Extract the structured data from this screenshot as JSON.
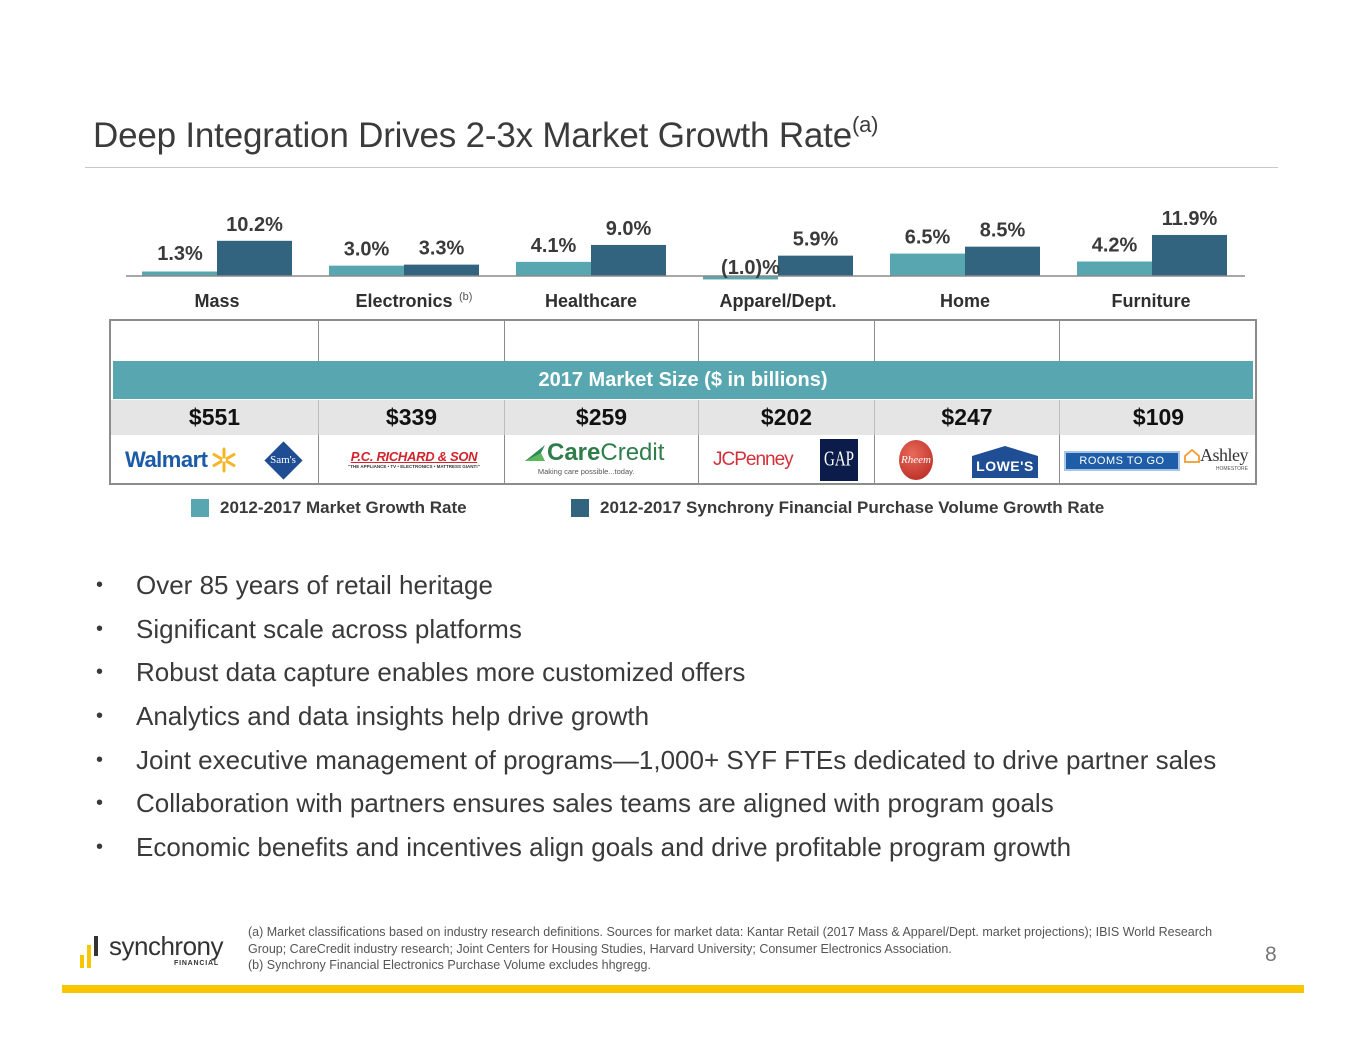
{
  "slide": {
    "title": "Deep Integration Drives 2-3x Market Growth Rate",
    "title_superscript": "(a)",
    "page_number": "8"
  },
  "colors": {
    "market_growth": "#58a7b0",
    "syf_growth": "#32647f",
    "band": "#58a7b0",
    "accent_yellow": "#f7c600"
  },
  "chart_data": {
    "type": "bar",
    "title": "",
    "xlabel": "",
    "ylabel": "",
    "ylim": [
      -1.5,
      12
    ],
    "grid": false,
    "legend_position": "bottom",
    "categories": [
      "Mass",
      "Electronics",
      "Healthcare",
      "Apparel/Dept.",
      "Home",
      "Furniture"
    ],
    "category_superscripts": [
      "",
      "(b)",
      "",
      "",
      "",
      ""
    ],
    "series": [
      {
        "name": "2012-2017 Market Growth Rate",
        "values": [
          1.3,
          3.0,
          4.1,
          -1.0,
          6.5,
          4.2
        ],
        "labels": [
          "1.3%",
          "3.0%",
          "4.1%",
          "(1.0)%",
          "6.5%",
          "4.2%"
        ]
      },
      {
        "name": "2012-2017 Synchrony Financial Purchase Volume Growth Rate",
        "values": [
          10.2,
          3.3,
          9.0,
          5.9,
          8.5,
          11.9
        ],
        "labels": [
          "10.2%",
          "3.3%",
          "9.0%",
          "5.9%",
          "8.5%",
          "11.9%"
        ]
      }
    ]
  },
  "market_table": {
    "band_label": "2017 Market Size ($ in billions)",
    "sizes": [
      "$551",
      "$339",
      "$259",
      "$202",
      "$247",
      "$109"
    ],
    "partners": [
      [
        "Walmart",
        "Sam's Club"
      ],
      [
        "P.C. Richard & Son"
      ],
      [
        "CareCredit"
      ],
      [
        "JCPenney",
        "GAP"
      ],
      [
        "Rheem",
        "Lowe's"
      ],
      [
        "Rooms To Go",
        "Ashley HomeStore"
      ]
    ],
    "logo_text": {
      "walmart": "Walmart",
      "sams": "Sam's",
      "sams_sub": "CLUB",
      "pcrichard": "P.C. RICHARD & SON",
      "pcrichard_tag": "\"THE APPLIANCE • TV • ELECTRONICS • MATTRESS GIANT!\"",
      "carecredit_a": "Care",
      "carecredit_b": "Credit",
      "carecredit_tag": "Making care possible...today.",
      "jcpenney": "JCPenney",
      "gap": "GAP",
      "rheem": "Rheem",
      "lowes": "LOWE'S",
      "roomstogo": "ROOMS TO GO",
      "ashley": "Ashley",
      "ashley_sub": "HOMESTORE"
    }
  },
  "legend": [
    {
      "label": "2012-2017 Market Growth Rate"
    },
    {
      "label": "2012-2017 Synchrony Financial Purchase Volume Growth Rate"
    }
  ],
  "bullets": [
    "Over 85 years of retail heritage",
    "Significant scale across platforms",
    "Robust data capture enables more customized offers",
    "Analytics and data insights help drive growth",
    "Joint executive management of programs—1,000+ SYF FTEs dedicated to drive partner sales",
    "Collaboration with partners ensures sales teams are aligned with program goals",
    "Economic benefits and incentives align goals and drive profitable program growth"
  ],
  "footnotes": {
    "a": "(a)  Market classifications based on industry research definitions. Sources for market data: Kantar Retail (2017 Mass & Apparel/Dept. market projections); IBIS World Research Group; CareCredit industry research; Joint Centers for Housing Studies, Harvard University; Consumer Electronics Association.",
    "b": "(b)  Synchrony Financial Electronics Purchase Volume excludes hhgregg."
  },
  "brand": {
    "name": "synchrony",
    "sub": "FINANCIAL"
  }
}
